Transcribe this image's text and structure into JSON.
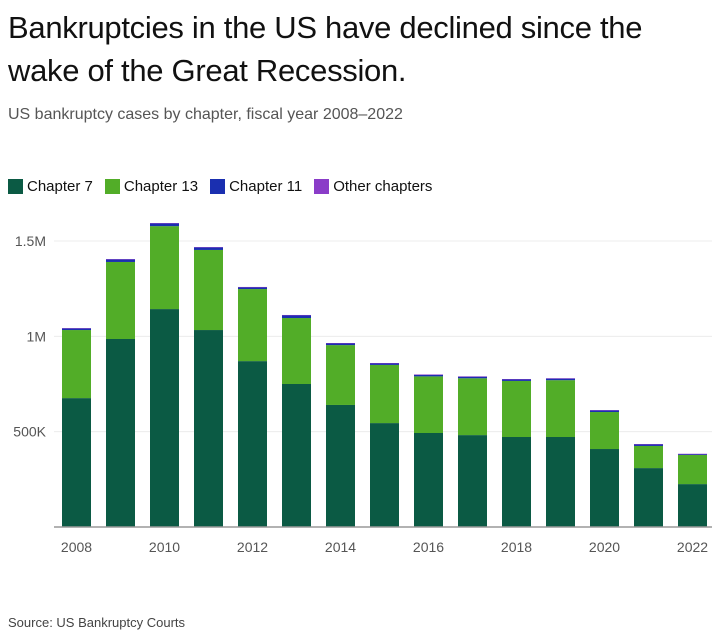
{
  "title": "Bankruptcies in the US have declined since the wake of the Great Recession.",
  "subtitle": "US bankruptcy cases by chapter, fiscal year 2008–2022",
  "source": "Source: US Bankruptcy Courts",
  "chart_data": {
    "type": "bar",
    "stacked": true,
    "categories": [
      "2008",
      "2009",
      "2010",
      "2011",
      "2012",
      "2013",
      "2014",
      "2015",
      "2016",
      "2017",
      "2018",
      "2019",
      "2020",
      "2021",
      "2022"
    ],
    "x_tick_labels": [
      "2008",
      "2010",
      "2012",
      "2014",
      "2016",
      "2018",
      "2020",
      "2022"
    ],
    "y_ticks": [
      {
        "value": 500000,
        "label": "500K"
      },
      {
        "value": 1000000,
        "label": "1M"
      },
      {
        "value": 1500000,
        "label": "1.5M"
      }
    ],
    "ylim": [
      0,
      1600000
    ],
    "grid": true,
    "legend_position": "top-left",
    "series": [
      {
        "name": "Chapter 7",
        "color": "#0b5a44",
        "values": [
          676000,
          986000,
          1143000,
          1033000,
          870000,
          750000,
          640000,
          545000,
          493000,
          482000,
          472000,
          472000,
          409000,
          309000,
          225000
        ]
      },
      {
        "name": "Chapter 13",
        "color": "#52ad28",
        "values": [
          357000,
          404000,
          435000,
          420000,
          378000,
          346000,
          314000,
          305000,
          297000,
          298000,
          294000,
          298000,
          194000,
          116000,
          153000
        ]
      },
      {
        "name": "Chapter 11",
        "color": "#1a2fb0",
        "values": [
          9000,
          14000,
          15000,
          14000,
          10000,
          15000,
          10000,
          9000,
          9000,
          9000,
          9000,
          9000,
          9000,
          9000,
          5000
        ]
      },
      {
        "name": "Other chapters",
        "color": "#8a3cc8",
        "values": [
          1000,
          1000,
          1000,
          1000,
          1000,
          1000,
          1000,
          1000,
          1000,
          1000,
          1000,
          1000,
          1000,
          1000,
          1000
        ]
      }
    ]
  }
}
